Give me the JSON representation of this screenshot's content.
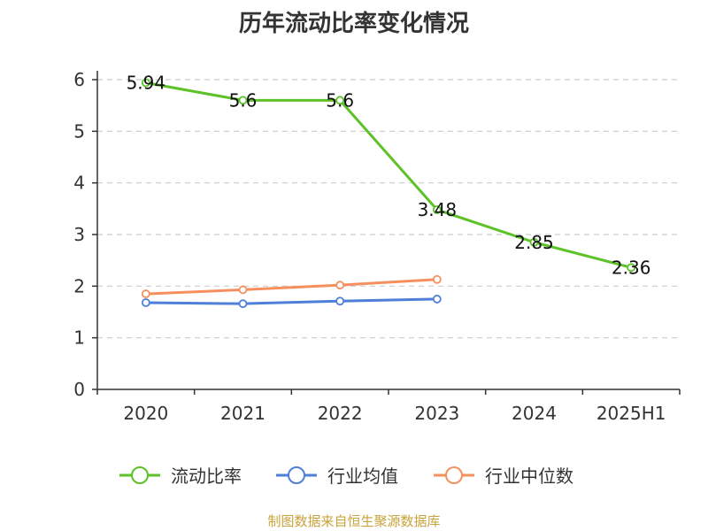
{
  "chart_data": {
    "type": "line",
    "title": "历年流动比率变化情况",
    "categories": [
      "2020",
      "2021",
      "2022",
      "2023",
      "2024",
      "2025H1"
    ],
    "ylim": [
      0,
      6
    ],
    "yticks": [
      "0",
      "1",
      "2",
      "3",
      "4",
      "5",
      "6"
    ],
    "grid": true,
    "legend_position": "bottom",
    "series": [
      {
        "name": "流动比率",
        "color": "#5cc227",
        "values": [
          5.94,
          5.6,
          5.6,
          3.48,
          2.85,
          2.36
        ],
        "labels": [
          "5.94",
          "5.6",
          "5.6",
          "3.48",
          "2.85",
          "2.36"
        ],
        "show_labels": true
      },
      {
        "name": "行业均值",
        "color": "#4f7fd9",
        "values": [
          1.68,
          1.66,
          1.71,
          1.75,
          null,
          null
        ],
        "show_labels": false
      },
      {
        "name": "行业中位数",
        "color": "#f5905e",
        "values": [
          1.85,
          1.93,
          2.02,
          2.13,
          null,
          null
        ],
        "show_labels": false
      }
    ]
  },
  "source": "制图数据来自恒生聚源数据库"
}
